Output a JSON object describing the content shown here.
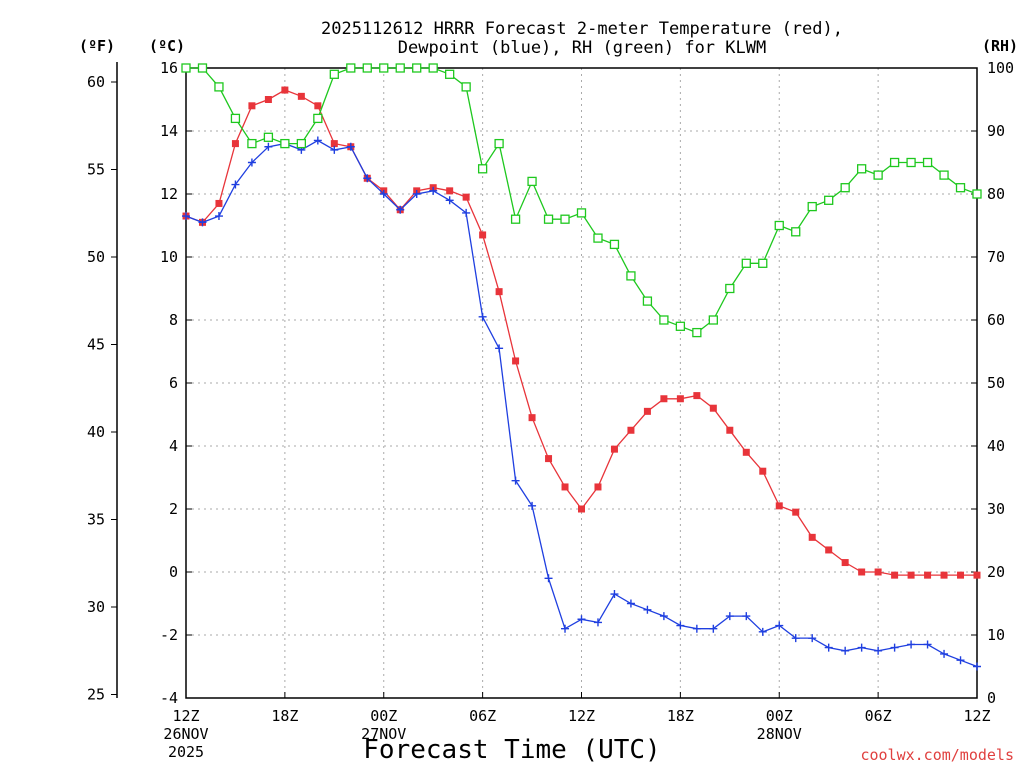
{
  "chart_data": {
    "type": "line",
    "title_line1": "2025112612 HRRR Forecast 2-meter Temperature (red),",
    "title_line2": "Dewpoint (blue), RH (green) for KLWM",
    "xlabel": "Forecast Time (UTC)",
    "units": {
      "fahrenheit": "(ºF)",
      "celsius": "(ºC)",
      "rh": "(RH)"
    },
    "watermark": "coolwx.com/models",
    "x_range_hours": [
      0,
      48
    ],
    "celsius_range": [
      -4,
      16
    ],
    "rh_range": [
      0,
      100
    ],
    "celsius_ticks": [
      "16",
      "14",
      "12",
      "10",
      "8",
      "6",
      "4",
      "2",
      "0",
      "-2",
      "-4"
    ],
    "fahrenheit_ticks": [
      "60",
      "55",
      "50",
      "45",
      "40",
      "35",
      "30",
      "25"
    ],
    "rh_ticks": [
      "100",
      "90",
      "80",
      "70",
      "60",
      "50",
      "40",
      "30",
      "20",
      "10",
      "0"
    ],
    "x_ticks": [
      {
        "label": "12Z",
        "date": "26NOV",
        "year": "2025"
      },
      {
        "label": "18Z",
        "date": "",
        "year": ""
      },
      {
        "label": "00Z",
        "date": "27NOV",
        "year": ""
      },
      {
        "label": "06Z",
        "date": "",
        "year": ""
      },
      {
        "label": "12Z",
        "date": "",
        "year": ""
      },
      {
        "label": "18Z",
        "date": "",
        "year": ""
      },
      {
        "label": "00Z",
        "date": "28NOV",
        "year": ""
      },
      {
        "label": "06Z",
        "date": "",
        "year": ""
      },
      {
        "label": "12Z",
        "date": "",
        "year": ""
      }
    ],
    "series": [
      {
        "name": "Temperature",
        "color": "#e8343a",
        "marker": "filled-square",
        "values": [
          11.3,
          11.1,
          11.7,
          13.6,
          14.8,
          15.0,
          15.3,
          15.1,
          14.8,
          13.6,
          13.5,
          12.5,
          12.1,
          11.5,
          12.1,
          12.2,
          12.1,
          11.9,
          10.7,
          8.9,
          6.7,
          4.9,
          3.6,
          2.7,
          2.0,
          2.7,
          3.9,
          4.5,
          5.1,
          5.5,
          5.5,
          5.6,
          5.2,
          4.5,
          3.8,
          3.2,
          2.1,
          1.9,
          1.1,
          0.7,
          0.3,
          0.0,
          0.0,
          -0.1,
          -0.1,
          -0.1,
          -0.1,
          -0.1,
          -0.1
        ]
      },
      {
        "name": "Dewpoint",
        "color": "#1f3fe0",
        "marker": "plus",
        "values": [
          11.3,
          11.1,
          11.3,
          12.3,
          13.0,
          13.5,
          13.6,
          13.4,
          13.7,
          13.4,
          13.5,
          12.5,
          12.0,
          11.5,
          12.0,
          12.1,
          11.8,
          11.4,
          8.1,
          7.1,
          2.9,
          2.1,
          -0.2,
          -1.8,
          -1.5,
          -1.6,
          -0.7,
          -1.0,
          -1.2,
          -1.4,
          -1.7,
          -1.8,
          -1.8,
          -1.4,
          -1.4,
          -1.9,
          -1.7,
          -2.1,
          -2.1,
          -2.4,
          -2.5,
          -2.4,
          -2.5,
          -2.4,
          -2.3,
          -2.3,
          -2.6,
          -2.8,
          -3.0
        ]
      },
      {
        "name": "RH",
        "color": "#1ec81e",
        "marker": "open-square",
        "values": [
          100,
          100,
          97,
          92,
          88,
          89,
          88,
          88,
          92,
          99,
          100,
          100,
          100,
          100,
          100,
          100,
          99,
          97,
          84,
          88,
          76,
          82,
          76,
          76,
          77,
          73,
          72,
          67,
          63,
          60,
          59,
          58,
          60,
          65,
          69,
          69,
          75,
          74,
          78,
          79,
          81,
          84,
          83,
          85,
          85,
          85,
          83,
          81,
          80
        ]
      }
    ]
  }
}
